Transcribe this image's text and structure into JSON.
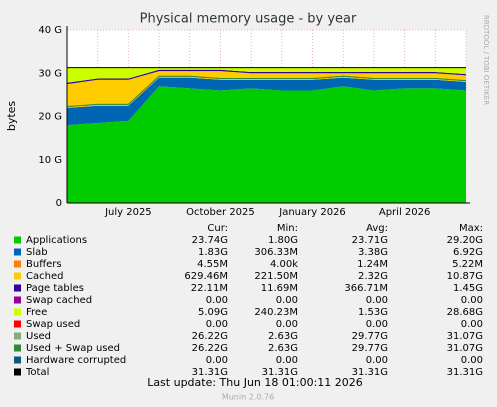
{
  "chart_data": {
    "type": "area",
    "title": "Physical memory usage - by year",
    "y_label": "bytes",
    "side_label": "RRDTOOL / TOBI OETIKER",
    "categories": [
      null,
      null,
      "July 2025",
      null,
      null,
      "October 2025",
      null,
      null,
      "January 2026",
      null,
      null,
      "April 2026",
      null,
      null
    ],
    "ylim": [
      0,
      40
    ],
    "yticks": [
      {
        "value": 0,
        "label": "0"
      },
      {
        "value": 10,
        "label": "10 G"
      },
      {
        "value": 20,
        "label": "20 G"
      },
      {
        "value": 30,
        "label": "30 G"
      },
      {
        "value": 40,
        "label": "40 G"
      }
    ],
    "grid": true,
    "stat_headers": [
      "Cur:",
      "Min:",
      "Avg:",
      "Max:"
    ],
    "series": [
      {
        "name": "Applications",
        "color": "#00cc00",
        "kind": "area",
        "values": [
          18,
          18.5,
          19,
          27,
          26.5,
          26,
          26.5,
          26,
          26,
          27,
          26,
          26.5,
          26.5,
          26
        ],
        "stats": [
          "23.74G",
          "1.80G",
          "23.71G",
          "29.20G"
        ]
      },
      {
        "name": "Slab",
        "color": "#0066b3",
        "kind": "area",
        "values": [
          4,
          4,
          3.5,
          2,
          2.5,
          2.5,
          2,
          2.5,
          2.5,
          2,
          2.5,
          2,
          2,
          2
        ],
        "stats": [
          "1.83G",
          "306.33M",
          "3.38G",
          "6.92G"
        ]
      },
      {
        "name": "Buffers",
        "color": "#ff8000",
        "kind": "area",
        "values": [
          0,
          0,
          0,
          0,
          0,
          0,
          0,
          0,
          0,
          0,
          0,
          0,
          0,
          0
        ],
        "stats": [
          "4.55M",
          "4.00k",
          "1.24M",
          "5.22M"
        ]
      },
      {
        "name": "Cached",
        "color": "#ffcc00",
        "kind": "area",
        "values": [
          5.5,
          6,
          6,
          1.5,
          1.5,
          2,
          1.5,
          1.5,
          1.5,
          1,
          1.5,
          1.5,
          1.5,
          1.5
        ],
        "stats": [
          "629.46M",
          "221.50M",
          "2.32G",
          "10.87G"
        ]
      },
      {
        "name": "Page tables",
        "color": "#330099",
        "kind": "area",
        "values": [
          0.3,
          0.3,
          0.3,
          0.3,
          0.3,
          0.3,
          0.3,
          0.3,
          0.3,
          0.3,
          0.3,
          0.3,
          0.3,
          0.3
        ],
        "stats": [
          "22.11M",
          "11.69M",
          "366.71M",
          "1.45G"
        ]
      },
      {
        "name": "Swap cached",
        "color": "#990099",
        "kind": "area",
        "values": [
          0,
          0,
          0,
          0,
          0,
          0,
          0,
          0,
          0,
          0,
          0,
          0,
          0,
          0
        ],
        "stats": [
          "0.00",
          "0.00",
          "0.00",
          "0.00"
        ]
      },
      {
        "name": "Free",
        "color": "#ccff00",
        "kind": "area",
        "values": [
          3.5,
          2.5,
          2.5,
          0.5,
          0.5,
          0.5,
          1,
          1,
          1,
          1,
          1,
          1,
          1,
          1.5
        ],
        "stats": [
          "5.09G",
          "240.23M",
          "1.53G",
          "28.68G"
        ]
      },
      {
        "name": "Swap used",
        "color": "#ff0000",
        "kind": "area",
        "values": [
          0,
          0,
          0,
          0,
          0,
          0,
          0,
          0,
          0,
          0,
          0,
          0,
          0,
          0
        ],
        "stats": [
          "0.00",
          "0.00",
          "0.00",
          "0.00"
        ]
      },
      {
        "name": "Used",
        "color": "#7faf7f",
        "kind": "line",
        "values": [
          22.3,
          22.8,
          22.8,
          29.3,
          29.3,
          28.8,
          28.8,
          28.8,
          28.8,
          29.3,
          28.8,
          28.8,
          28.8,
          28.3
        ],
        "stats": [
          "26.22G",
          "2.63G",
          "29.77G",
          "31.07G"
        ]
      },
      {
        "name": "Used + Swap used",
        "color": "#338833",
        "kind": "line",
        "values": [
          22.3,
          22.8,
          22.8,
          29.3,
          29.3,
          28.8,
          28.8,
          28.8,
          28.8,
          29.3,
          28.8,
          28.8,
          28.8,
          28.3
        ],
        "stats": [
          "26.22G",
          "2.63G",
          "29.77G",
          "31.07G"
        ]
      },
      {
        "name": "Hardware corrupted",
        "color": "#0d5978",
        "kind": "line",
        "values": [
          0,
          0,
          0,
          0,
          0,
          0,
          0,
          0,
          0,
          0,
          0,
          0,
          0,
          0
        ],
        "stats": [
          "0.00",
          "0.00",
          "0.00",
          "0.00"
        ]
      },
      {
        "name": "Total",
        "color": "#000000",
        "kind": "line",
        "values": [
          31.31,
          31.31,
          31.31,
          31.31,
          31.31,
          31.31,
          31.31,
          31.31,
          31.31,
          31.31,
          31.31,
          31.31,
          31.31,
          31.31
        ],
        "stats": [
          "31.31G",
          "31.31G",
          "31.31G",
          "31.31G"
        ]
      }
    ],
    "last_update": "Last update: Thu Jun 18 01:00:11 2026",
    "footer": "Munin 2.0.76"
  }
}
